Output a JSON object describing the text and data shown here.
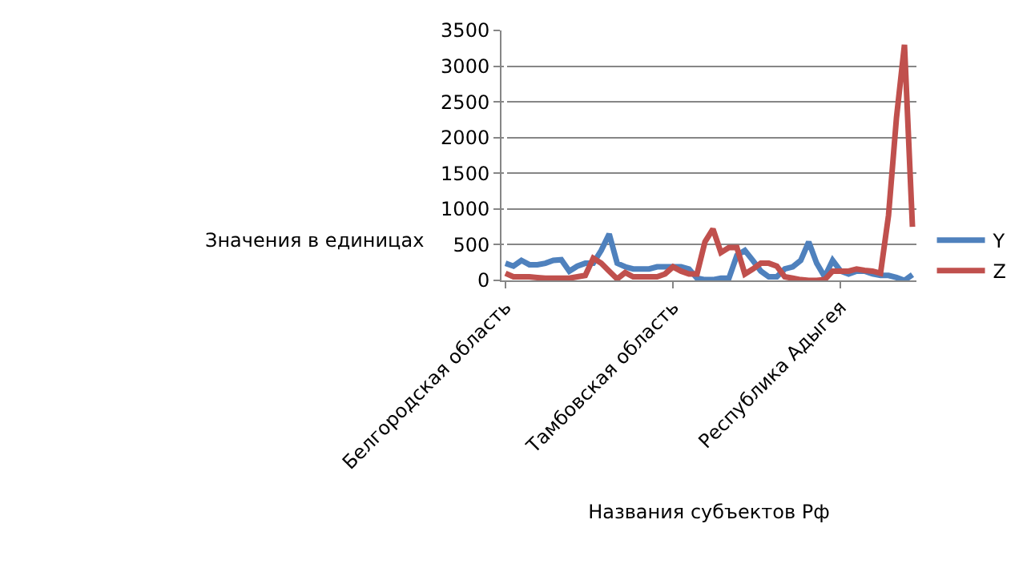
{
  "chart_data": {
    "type": "line",
    "xlabel": "Названия субъектов Рф",
    "ylabel": "Значения в единицах",
    "categories": [
      "Белгородская область",
      null,
      null,
      null,
      null,
      null,
      null,
      null,
      null,
      null,
      null,
      null,
      null,
      null,
      null,
      null,
      null,
      null,
      null,
      null,
      null,
      "Тамбовская область",
      null,
      null,
      null,
      null,
      null,
      null,
      null,
      null,
      null,
      null,
      null,
      null,
      null,
      null,
      null,
      null,
      null,
      null,
      null,
      null,
      "Республика Адыгея",
      null,
      null,
      null,
      null,
      null,
      null,
      null,
      null,
      null
    ],
    "series": [
      {
        "name": "Y",
        "color": "#4f81bd",
        "values": [
          240,
          200,
          280,
          220,
          220,
          240,
          280,
          290,
          130,
          200,
          240,
          240,
          420,
          650,
          240,
          190,
          160,
          160,
          160,
          190,
          190,
          190,
          190,
          160,
          30,
          10,
          10,
          30,
          30,
          350,
          420,
          280,
          130,
          50,
          50,
          160,
          190,
          280,
          540,
          240,
          50,
          280,
          130,
          90,
          130,
          130,
          90,
          70,
          70,
          40,
          0,
          80
        ]
      },
      {
        "name": "Z",
        "color": "#c0504d",
        "values": [
          100,
          50,
          50,
          50,
          40,
          30,
          30,
          30,
          30,
          50,
          70,
          310,
          240,
          130,
          20,
          110,
          50,
          50,
          50,
          50,
          90,
          190,
          130,
          90,
          90,
          540,
          720,
          390,
          460,
          460,
          90,
          160,
          240,
          240,
          200,
          50,
          30,
          10,
          0,
          0,
          10,
          130,
          130,
          130,
          160,
          140,
          130,
          100,
          910,
          2280,
          3300,
          750
        ]
      }
    ],
    "ylim": [
      0,
      3500
    ],
    "yticks": [
      0,
      500,
      1000,
      1500,
      2000,
      2500,
      3000,
      3500
    ],
    "grid": "y",
    "legend": "right",
    "marker": "none",
    "line_style": "solid"
  }
}
